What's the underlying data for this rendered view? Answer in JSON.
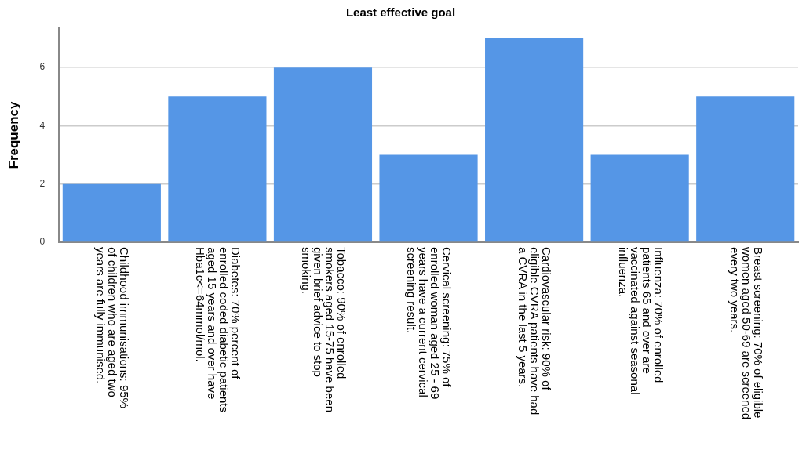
{
  "chart_data": {
    "type": "bar",
    "title": "Least effective goal",
    "ylabel": "Frequency",
    "categories": [
      "Childhood immunisations: 95% of children who are aged two years are fully immunised.",
      "Diabetes: 70% percent of enrolled coded diabetic patients aged 15 years and over have Hba1c<=64mmol/mol.",
      "Tobacco: 90% of enrolled smokers aged 15-75 have been given brief advice to stop smoking.",
      "Cervical screening: 75% of enrolled woman aged 25 - 69 years have a current cervical screening result.",
      "Cardiovascular risk: 90% of eligible CVRA patients have had a CVRA in the last 5 years.",
      "Influenza: 70% of enrolled patients 65 and over are vaccinated against seasonal influenza.",
      "Breast screening: 70% of eligible women aged 50-69 are screened every two years."
    ],
    "values": [
      2,
      5,
      6,
      3,
      7,
      3,
      5
    ],
    "color": "#5596e6",
    "ylim": [
      0,
      7.35
    ],
    "yticks": [
      0,
      2,
      4,
      6
    ],
    "grid": "y"
  }
}
